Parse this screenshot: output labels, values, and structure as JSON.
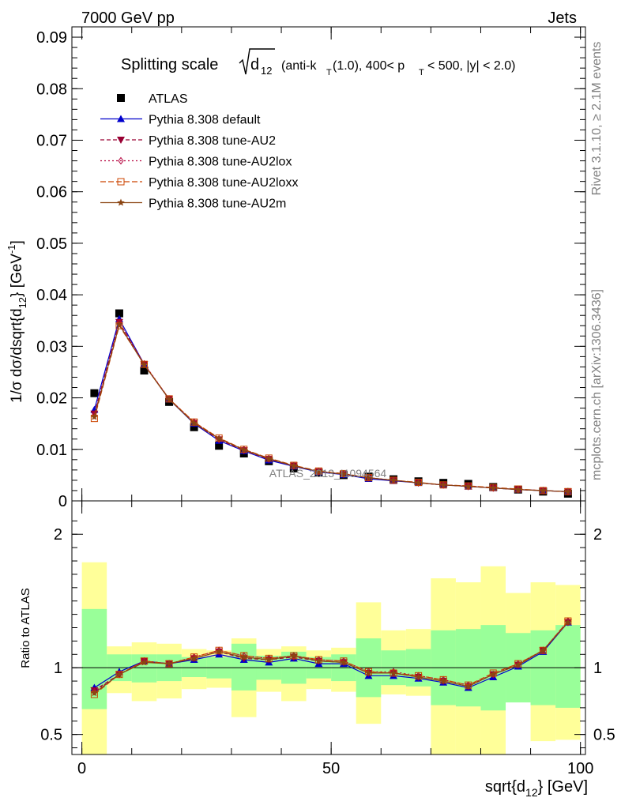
{
  "header": {
    "left": "7000 GeV pp",
    "right": "Jets"
  },
  "side_labels": {
    "rivet": "Rivet 3.1.10, ≥ 2.1M events",
    "mcplots": "mcplots.cern.ch [arXiv:1306.3436]"
  },
  "watermark": "ATLAS_2013_I1094564",
  "colors": {
    "band_inner": "#99ff99",
    "band_outer": "#ffff99",
    "ATLAS": "#000000",
    "default": "#0000cc",
    "AU2": "#990033",
    "AU2lox": "#b5003c",
    "AU2loxx": "#cc4400",
    "AU2m": "#8b4513"
  },
  "chart_data": [
    {
      "type": "line",
      "title_main": "Splitting scale",
      "title_sqrt": "d",
      "title_sqrt_sub": "12",
      "title_rest_1": "(anti-k",
      "title_rest_1_sub": "T",
      "title_rest_2": "(1.0), 400< p",
      "title_rest_2_sub": "T",
      "title_rest_3": "< 500, |y| < 2.0)",
      "ylabel": "1/σ dσ/dsqrt{d",
      "ylabel_sub": "12",
      "ylabel_mid": "} [GeV",
      "ylabel_sup": "-1",
      "ylabel_end": "]",
      "xlim": [
        -2,
        101
      ],
      "ylim": [
        0,
        0.092
      ],
      "yticks": [
        0,
        0.01,
        0.02,
        0.03,
        0.04,
        0.05,
        0.06,
        0.07,
        0.08,
        0.09
      ],
      "ytick_labels": [
        "0",
        "0.01",
        "0.02",
        "0.03",
        "0.04",
        "0.05",
        "0.06",
        "0.07",
        "0.08",
        "0.09"
      ],
      "x": [
        2.5,
        7.5,
        12.5,
        17.5,
        22.5,
        27.5,
        32.5,
        37.5,
        42.5,
        47.5,
        52.5,
        57.5,
        62.5,
        67.5,
        72.5,
        77.5,
        82.5,
        87.5,
        92.5,
        97.5
      ],
      "legend": [
        "ATLAS",
        "Pythia 8.308 default",
        "Pythia 8.308 tune-AU2",
        "Pythia 8.308 tune-AU2lox",
        "Pythia 8.308 tune-AU2loxx",
        "Pythia 8.308 tune-AU2m"
      ],
      "legend_position": "top-left",
      "series": [
        {
          "name": "ATLAS",
          "key": "ATLAS",
          "marker": "square",
          "values": [
            0.0209,
            0.0364,
            0.0253,
            0.0192,
            0.0143,
            0.0107,
            0.0092,
            0.0077,
            0.0063,
            0.0055,
            0.005,
            0.0047,
            0.0042,
            0.0038,
            0.0035,
            0.0033,
            0.0027,
            0.0022,
            0.0018,
            0.0014
          ]
        },
        {
          "name": "Pythia 8.308 default",
          "key": "default",
          "marker": "triangle-up",
          "values": [
            0.0177,
            0.0353,
            0.0265,
            0.0197,
            0.015,
            0.0117,
            0.0097,
            0.0079,
            0.0067,
            0.0056,
            0.0051,
            0.0043,
            0.0039,
            0.0035,
            0.0031,
            0.0028,
            0.0025,
            0.0022,
            0.002,
            0.0018
          ]
        },
        {
          "name": "Pythia 8.308 tune-AU2",
          "key": "AU2",
          "marker": "triangle-down",
          "values": [
            0.0169,
            0.0347,
            0.0265,
            0.0198,
            0.0151,
            0.0119,
            0.0098,
            0.0081,
            0.0068,
            0.0057,
            0.0052,
            0.0045,
            0.004,
            0.0035,
            0.0031,
            0.0028,
            0.0025,
            0.0022,
            0.002,
            0.0018
          ]
        },
        {
          "name": "Pythia 8.308 tune-AU2lox",
          "key": "AU2lox",
          "marker": "diamond-open",
          "values": [
            0.0166,
            0.0346,
            0.0266,
            0.0198,
            0.0153,
            0.012,
            0.01,
            0.0082,
            0.0068,
            0.0057,
            0.0052,
            0.0045,
            0.004,
            0.0035,
            0.0031,
            0.0029,
            0.0025,
            0.0022,
            0.002,
            0.0018
          ]
        },
        {
          "name": "Pythia 8.308 tune-AU2loxx",
          "key": "AU2loxx",
          "marker": "square-open",
          "values": [
            0.016,
            0.034,
            0.0265,
            0.0198,
            0.0153,
            0.0122,
            0.01,
            0.0083,
            0.0069,
            0.0058,
            0.0053,
            0.0045,
            0.004,
            0.0036,
            0.0031,
            0.0029,
            0.0026,
            0.0023,
            0.002,
            0.0018
          ]
        },
        {
          "name": "Pythia 8.308 tune-AU2m",
          "key": "AU2m",
          "marker": "star",
          "values": [
            0.0163,
            0.0342,
            0.0264,
            0.0197,
            0.0151,
            0.0121,
            0.0099,
            0.0082,
            0.0068,
            0.0057,
            0.0052,
            0.0045,
            0.004,
            0.0035,
            0.0031,
            0.0028,
            0.0025,
            0.0022,
            0.002,
            0.0018
          ]
        }
      ]
    },
    {
      "type": "line",
      "ylabel": "Ratio to ATLAS",
      "xlabel": "sqrt{d",
      "xlabel_sub": "12",
      "xlabel_end": "} [GeV]",
      "xlim": [
        -2,
        101
      ],
      "ylim": [
        0.35,
        2.25
      ],
      "xticks": [
        0,
        50,
        100
      ],
      "xtick_labels": [
        "0",
        "50",
        "100"
      ],
      "yticks": [
        0.5,
        1,
        2
      ],
      "ytick_labels": [
        "0.5",
        "1",
        "2"
      ],
      "reference_line": 1,
      "bins": [
        [
          0,
          5
        ],
        [
          5,
          10
        ],
        [
          10,
          15
        ],
        [
          15,
          20
        ],
        [
          20,
          25
        ],
        [
          25,
          30
        ],
        [
          30,
          35
        ],
        [
          35,
          40
        ],
        [
          40,
          45
        ],
        [
          45,
          50
        ],
        [
          50,
          55
        ],
        [
          55,
          60
        ],
        [
          60,
          65
        ],
        [
          65,
          70
        ],
        [
          70,
          75
        ],
        [
          75,
          80
        ],
        [
          80,
          85
        ],
        [
          85,
          90
        ],
        [
          90,
          95
        ],
        [
          95,
          100
        ]
      ],
      "band_inner": [
        [
          0.69,
          1.44
        ],
        [
          0.9,
          1.1
        ],
        [
          0.89,
          1.1
        ],
        [
          0.9,
          1.1
        ],
        [
          0.93,
          1.08
        ],
        [
          0.92,
          1.08
        ],
        [
          0.83,
          1.18
        ],
        [
          0.91,
          1.09
        ],
        [
          0.88,
          1.12
        ],
        [
          0.92,
          1.08
        ],
        [
          0.9,
          1.1
        ],
        [
          0.78,
          1.22
        ],
        [
          0.87,
          1.13
        ],
        [
          0.86,
          1.14
        ],
        [
          0.72,
          1.28
        ],
        [
          0.71,
          1.29
        ],
        [
          0.68,
          1.32
        ],
        [
          0.74,
          1.26
        ],
        [
          0.72,
          1.28
        ],
        [
          0.7,
          1.32
        ]
      ],
      "band_outer": [
        [
          0.35,
          1.79
        ],
        [
          0.81,
          1.16
        ],
        [
          0.75,
          1.19
        ],
        [
          0.77,
          1.18
        ],
        [
          0.84,
          1.14
        ],
        [
          0.85,
          1.13
        ],
        [
          0.63,
          1.22
        ],
        [
          0.82,
          1.14
        ],
        [
          0.75,
          1.16
        ],
        [
          0.84,
          1.13
        ],
        [
          0.82,
          1.15
        ],
        [
          0.58,
          1.49
        ],
        [
          0.8,
          1.28
        ],
        [
          0.79,
          1.29
        ],
        [
          0.35,
          1.67
        ],
        [
          0.35,
          1.64
        ],
        [
          0.35,
          1.76
        ],
        [
          0.83,
          1.56
        ],
        [
          0.45,
          1.64
        ],
        [
          0.46,
          1.62
        ]
      ],
      "series": [
        {
          "name": "Pythia 8.308 default",
          "key": "default",
          "marker": "triangle-up",
          "values": [
            0.85,
            0.97,
            1.05,
            1.03,
            1.06,
            1.1,
            1.06,
            1.04,
            1.07,
            1.03,
            1.03,
            0.94,
            0.94,
            0.92,
            0.89,
            0.85,
            0.93,
            1.01,
            1.12,
            1.34
          ]
        },
        {
          "name": "Pythia 8.308 tune-AU2",
          "key": "AU2",
          "marker": "triangle-down",
          "values": [
            0.83,
            0.95,
            1.05,
            1.03,
            1.07,
            1.12,
            1.07,
            1.06,
            1.08,
            1.05,
            1.04,
            0.96,
            0.96,
            0.93,
            0.9,
            0.86,
            0.95,
            1.02,
            1.13,
            1.34
          ]
        },
        {
          "name": "Pythia 8.308 tune-AU2lox",
          "key": "AU2lox",
          "marker": "diamond-open",
          "values": [
            0.82,
            0.95,
            1.05,
            1.03,
            1.08,
            1.13,
            1.09,
            1.07,
            1.09,
            1.06,
            1.05,
            0.97,
            0.97,
            0.94,
            0.91,
            0.87,
            0.95,
            1.03,
            1.13,
            1.35
          ]
        },
        {
          "name": "Pythia 8.308 tune-AU2loxx",
          "key": "AU2loxx",
          "marker": "square-open",
          "values": [
            0.8,
            0.95,
            1.05,
            1.03,
            1.08,
            1.13,
            1.09,
            1.07,
            1.09,
            1.06,
            1.05,
            0.97,
            0.96,
            0.94,
            0.91,
            0.87,
            0.96,
            1.03,
            1.13,
            1.35
          ]
        },
        {
          "name": "Pythia 8.308 tune-AU2m",
          "key": "AU2m",
          "marker": "star",
          "values": [
            0.81,
            0.95,
            1.04,
            1.03,
            1.07,
            1.12,
            1.08,
            1.06,
            1.09,
            1.05,
            1.04,
            0.96,
            0.96,
            0.93,
            0.9,
            0.86,
            0.95,
            1.02,
            1.13,
            1.34
          ]
        }
      ]
    }
  ]
}
